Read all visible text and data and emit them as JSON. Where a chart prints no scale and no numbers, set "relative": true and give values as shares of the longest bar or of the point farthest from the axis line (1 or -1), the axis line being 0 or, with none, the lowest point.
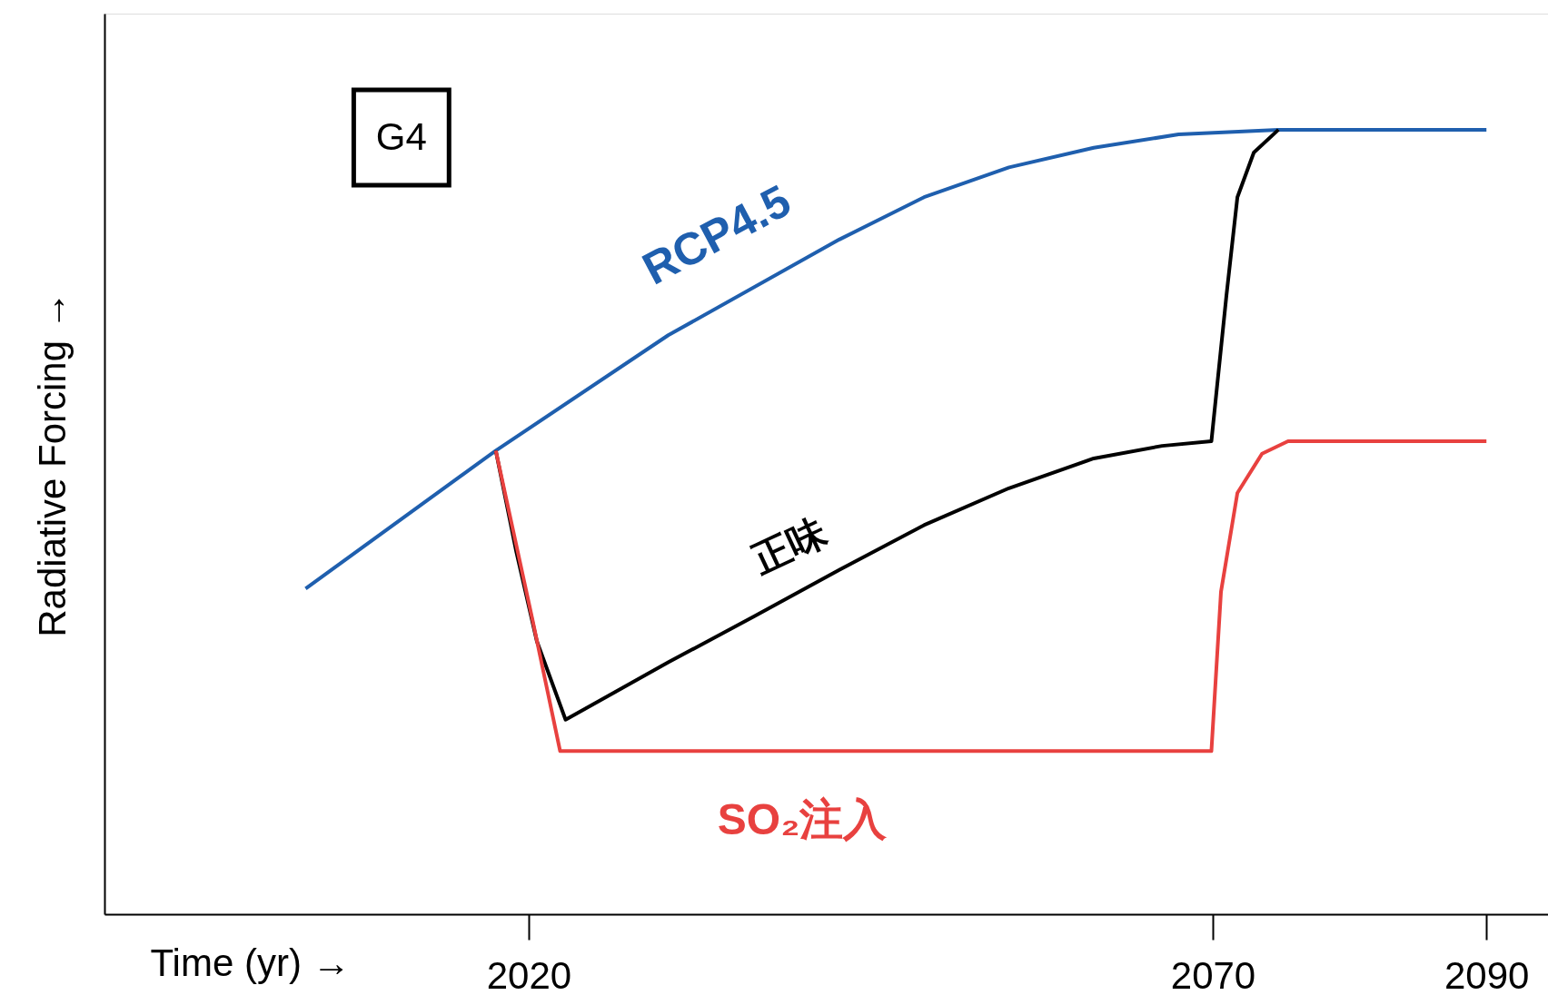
{
  "chart_data": {
    "type": "line",
    "relative": true,
    "xlabel": "Time (yr) →",
    "ylabel": "Radiative Forcing →",
    "xlim": [
      1989,
      2094.5
    ],
    "xticks": [
      2020,
      2070,
      2090
    ],
    "grid": false,
    "marker": "none",
    "line_style": "solid",
    "annotations": [
      "G4"
    ],
    "series": [
      {
        "name": "RCP4.5",
        "color": "#1f5fae",
        "x": [
          2003.7,
          2017.6,
          2030.2,
          2042.7,
          2048.9,
          2055.1,
          2061.3,
          2067.5,
          2074.8,
          2090
        ],
        "values": [
          0.415,
          0.591,
          0.738,
          0.86,
          0.914,
          0.952,
          0.977,
          0.994,
          1,
          1
        ]
      },
      {
        "name": "正味",
        "color": "#000000",
        "x": [
          2017.6,
          2019.1,
          2020.6,
          2022.7,
          2030.2,
          2036.5,
          2042.7,
          2048.9,
          2055.1,
          2061.3,
          2066.3,
          2069.9,
          2071.0,
          2071.8,
          2073.0,
          2074.8
        ],
        "values": [
          0.591,
          0.462,
          0.348,
          0.248,
          0.321,
          0.38,
          0.439,
          0.496,
          0.543,
          0.581,
          0.597,
          0.603,
          0.789,
          0.914,
          0.971,
          1
        ]
      },
      {
        "name": "SO₂注入",
        "color": "#e8413f",
        "x": [
          2017.6,
          2020.3,
          2022.3,
          2069.9,
          2070.6,
          2071.8,
          2073.6,
          2075.5,
          2090
        ],
        "values": [
          0.591,
          0.374,
          0.208,
          0.208,
          0.411,
          0.537,
          0.587,
          0.603,
          0.603
        ]
      }
    ]
  }
}
